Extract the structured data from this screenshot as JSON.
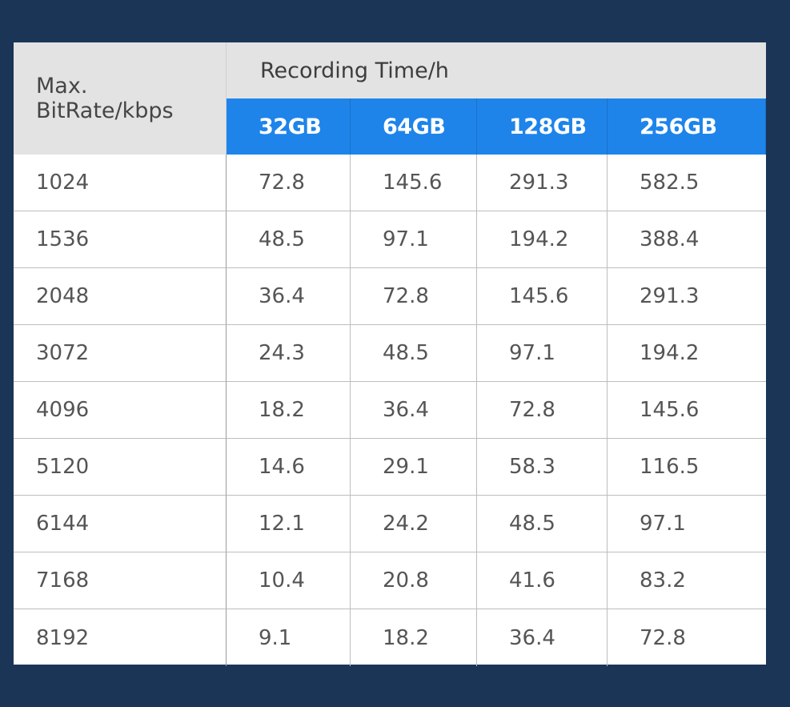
{
  "table": {
    "corner_label": "Max. BitRate/kbps",
    "corner_line1": "Max.",
    "corner_line2": "BitRate/kbps",
    "group_header": "Recording Time/h",
    "capacities": [
      "32GB",
      "64GB",
      "128GB",
      "256GB"
    ],
    "rows": [
      {
        "bitrate": "1024",
        "values": [
          "72.8",
          "145.6",
          "291.3",
          "582.5"
        ]
      },
      {
        "bitrate": "1536",
        "values": [
          "48.5",
          "97.1",
          "194.2",
          "388.4"
        ]
      },
      {
        "bitrate": "2048",
        "values": [
          "36.4",
          "72.8",
          "145.6",
          "291.3"
        ]
      },
      {
        "bitrate": "3072",
        "values": [
          "24.3",
          "48.5",
          "97.1",
          "194.2"
        ]
      },
      {
        "bitrate": "4096",
        "values": [
          "18.2",
          "36.4",
          "72.8",
          "145.6"
        ]
      },
      {
        "bitrate": "5120",
        "values": [
          "14.6",
          "29.1",
          "58.3",
          "116.5"
        ]
      },
      {
        "bitrate": "6144",
        "values": [
          "12.1",
          "24.2",
          "48.5",
          "97.1"
        ]
      },
      {
        "bitrate": "7168",
        "values": [
          "10.4",
          "20.8",
          "41.6",
          "83.2"
        ]
      },
      {
        "bitrate": "8192",
        "values": [
          "9.1",
          "18.2",
          "36.4",
          "72.8"
        ]
      }
    ]
  },
  "colors": {
    "page_background": "#1b3557",
    "header_gray": "#e3e3e3",
    "capacity_blue": "#1e84ea",
    "text": "#555555"
  }
}
